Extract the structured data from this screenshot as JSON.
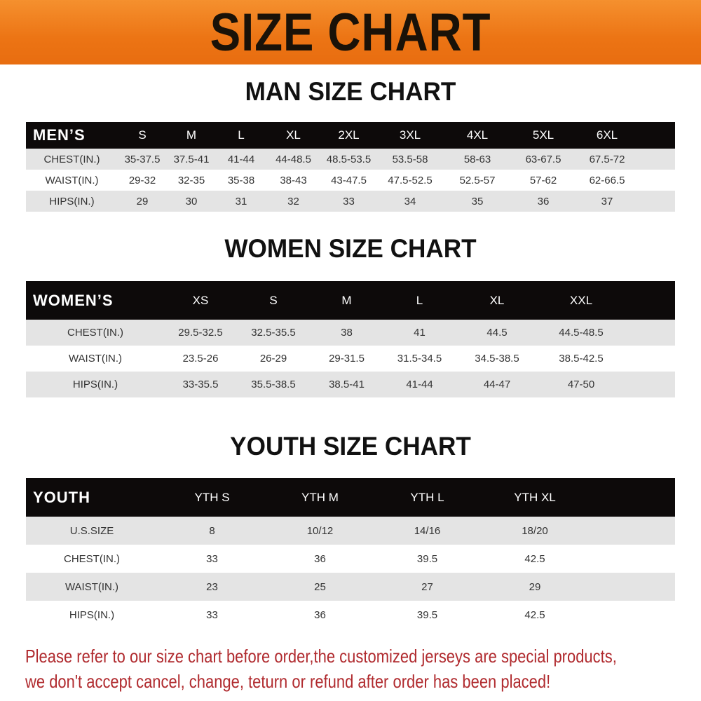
{
  "banner": {
    "title": "SIZE CHART",
    "color": "#ec7414"
  },
  "men": {
    "title": "MAN SIZE CHART",
    "header": [
      "MEN’S",
      "S",
      "M",
      "L",
      "XL",
      "2XL",
      "3XL",
      "4XL",
      "5XL",
      "6XL"
    ],
    "rows": [
      [
        "CHEST(IN.)",
        "35-37.5",
        "37.5-41",
        "41-44",
        "44-48.5",
        "48.5-53.5",
        "53.5-58",
        "58-63",
        "63-67.5",
        "67.5-72"
      ],
      [
        "WAIST(IN.)",
        "29-32",
        "32-35",
        "35-38",
        "38-43",
        "43-47.5",
        "47.5-52.5",
        "52.5-57",
        "57-62",
        "62-66.5"
      ],
      [
        "HIPS(IN.)",
        "29",
        "30",
        "31",
        "32",
        "33",
        "34",
        "35",
        "36",
        "37"
      ]
    ]
  },
  "women": {
    "title": "WOMEN SIZE CHART",
    "header": [
      "WOMEN’S",
      "XS",
      "S",
      "M",
      "L",
      "XL",
      "XXL"
    ],
    "rows": [
      [
        "CHEST(IN.)",
        "29.5-32.5",
        "32.5-35.5",
        "38",
        "41",
        "44.5",
        "44.5-48.5"
      ],
      [
        "WAIST(IN.)",
        "23.5-26",
        "26-29",
        "29-31.5",
        "31.5-34.5",
        "34.5-38.5",
        "38.5-42.5"
      ],
      [
        "HIPS(IN.)",
        "33-35.5",
        "35.5-38.5",
        "38.5-41",
        "41-44",
        "44-47",
        "47-50"
      ]
    ]
  },
  "youth": {
    "title": "YOUTH SIZE CHART",
    "header": [
      "YOUTH",
      "YTH S",
      "YTH M",
      "YTH L",
      "YTH XL"
    ],
    "rows": [
      [
        "U.S.SIZE",
        "8",
        "10/12",
        "14/16",
        "18/20"
      ],
      [
        "CHEST(IN.)",
        "33",
        "36",
        "39.5",
        "42.5"
      ],
      [
        "WAIST(IN.)",
        "23",
        "25",
        "27",
        "29"
      ],
      [
        "HIPS(IN.)",
        "33",
        "36",
        "39.5",
        "42.5"
      ]
    ]
  },
  "footer": {
    "line1": "Please refer to our size chart before order,the customized jerseys are special products,",
    "line2": "we don't accept cancel, change, teturn or refund after order has been placed!",
    "color": "#b02a2e"
  }
}
